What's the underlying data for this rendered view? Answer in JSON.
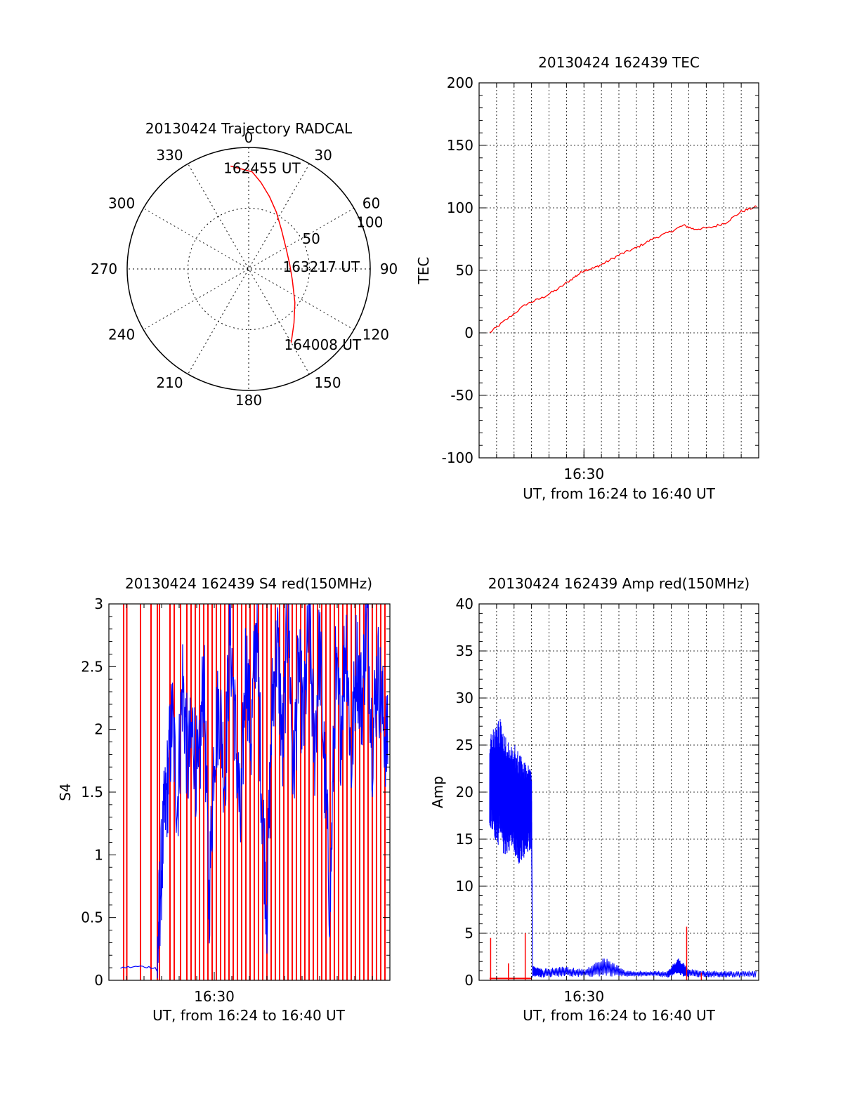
{
  "colors": {
    "red": "#ff0000",
    "blue": "#0000ff",
    "axis": "#000000",
    "grid": "#000000"
  },
  "chart_data": [
    {
      "type": "polar",
      "title": "20130424 Trajectory RADCAL",
      "angle_labels": [
        "0",
        "30",
        "60",
        "90",
        "120",
        "150",
        "180",
        "210",
        "240",
        "270",
        "300",
        "330"
      ],
      "radius_labels": [
        "50",
        "100"
      ],
      "radius_max": 100,
      "series": [
        {
          "color": "red",
          "points": [
            [
              350,
              86
            ],
            [
              2,
              80
            ],
            [
              8,
              72
            ],
            [
              16,
              62
            ],
            [
              26,
              52
            ],
            [
              40,
              42
            ],
            [
              62,
              35
            ],
            [
              84,
              34
            ],
            [
              104,
              37
            ],
            [
              126,
              47
            ],
            [
              140,
              58
            ],
            [
              150,
              70
            ]
          ]
        }
      ],
      "annotations": [
        {
          "text": "162455 UT",
          "angle": 350,
          "r": 86
        },
        {
          "text": "163217 UT",
          "angle": 84,
          "r": 34
        },
        {
          "text": "164008 UT",
          "angle": 150,
          "r": 70
        }
      ]
    },
    {
      "type": "line",
      "title": "20130424 162439 TEC",
      "ylabel": "TEC",
      "xlabel": "UT, from 16:24 to 16:40 UT",
      "xlim": [
        16.4,
        16.6667
      ],
      "ylim": [
        -100,
        200
      ],
      "yticks": [
        "-100",
        "-50",
        "0",
        "50",
        "100",
        "150",
        "200"
      ],
      "xtick_labels": [
        {
          "x": 16.5,
          "label": "16:30"
        }
      ],
      "grid": true,
      "series": [
        {
          "color": "red",
          "x": [
            16.41,
            16.425,
            16.445,
            16.46,
            16.475,
            16.49,
            16.5,
            16.51,
            16.52,
            16.535,
            16.55,
            16.565,
            16.58,
            16.595,
            16.605,
            16.62,
            16.635,
            16.65,
            16.665
          ],
          "y": [
            0,
            10,
            23,
            28,
            35,
            44,
            50,
            52,
            56,
            63,
            68,
            75,
            80,
            86,
            83,
            84,
            88,
            97,
            101
          ]
        }
      ]
    },
    {
      "type": "line",
      "title": "20130424 162439 S4 red(150MHz)",
      "ylabel": "S4",
      "xlabel": "UT, from 16:24 to 16:40 UT",
      "xlim": [
        16.4,
        16.6667
      ],
      "ylim": [
        0,
        3
      ],
      "yticks": [
        "0",
        "0.5",
        "1",
        "1.5",
        "2",
        "2.5",
        "3"
      ],
      "xtick_labels": [
        {
          "x": 16.5,
          "label": "16:30"
        }
      ],
      "grid": false,
      "series": [
        {
          "color": "red",
          "note": "vertical spikes spanning 0–3",
          "spike_x": [
            16.414,
            16.417,
            16.43,
            16.44,
            16.446,
            16.448,
            16.458,
            16.462,
            16.468,
            16.474,
            16.478,
            16.482,
            16.486,
            16.49,
            16.494,
            16.498,
            16.502,
            16.506,
            16.51,
            16.514,
            16.518,
            16.522,
            16.526,
            16.53,
            16.534,
            16.538,
            16.542,
            16.546,
            16.55,
            16.554,
            16.558,
            16.562,
            16.566,
            16.57,
            16.574,
            16.578,
            16.582,
            16.586,
            16.59,
            16.594,
            16.598,
            16.602,
            16.606,
            16.61,
            16.614,
            16.618,
            16.622,
            16.626,
            16.63,
            16.634,
            16.638,
            16.642,
            16.646,
            16.65,
            16.654,
            16.658,
            16.662
          ]
        },
        {
          "color": "blue",
          "x": [
            16.411,
            16.43,
            16.446,
            16.448,
            16.452,
            16.456,
            16.46,
            16.465,
            16.47,
            16.475,
            16.48,
            16.485,
            16.49,
            16.495,
            16.5,
            16.505,
            16.51,
            16.515,
            16.52,
            16.525,
            16.53,
            16.535,
            16.54,
            16.545,
            16.55,
            16.555,
            16.56,
            16.565,
            16.57,
            16.575,
            16.58,
            16.585,
            16.59,
            16.595,
            16.6,
            16.605,
            16.61,
            16.615,
            16.62,
            16.625,
            16.63,
            16.635,
            16.64,
            16.645,
            16.65,
            16.655,
            16.66,
            16.665
          ],
          "y": [
            0.1,
            0.11,
            0.1,
            0.6,
            1.2,
            1.6,
            2.1,
            1.4,
            2.4,
            1.7,
            2.0,
            1.5,
            2.5,
            0.6,
            1.9,
            2.2,
            1.6,
            2.8,
            2.0,
            1.2,
            2.6,
            1.9,
            2.9,
            1.5,
            0.6,
            2.2,
            2.7,
            1.8,
            3.0,
            1.6,
            2.5,
            2.0,
            2.9,
            1.8,
            2.7,
            1.6,
            0.6,
            2.4,
            2.0,
            2.8,
            1.7,
            2.6,
            2.2,
            2.9,
            1.9,
            2.5,
            2.1,
            1.8
          ]
        }
      ]
    },
    {
      "type": "line",
      "title": "20130424 162439 Amp red(150MHz)",
      "ylabel": "Amp",
      "xlabel": "UT, from 16:24 to 16:40 UT",
      "xlim": [
        16.4,
        16.6667
      ],
      "ylim": [
        0,
        40
      ],
      "yticks": [
        "0",
        "5",
        "10",
        "15",
        "20",
        "25",
        "30",
        "35",
        "40"
      ],
      "xtick_labels": [
        {
          "x": 16.5,
          "label": "16:30"
        }
      ],
      "grid": true,
      "series": [
        {
          "color": "blue",
          "x": [
            16.41,
            16.415,
            16.42,
            16.425,
            16.43,
            16.435,
            16.44,
            16.445,
            16.45,
            16.451,
            16.455,
            16.46,
            16.48,
            16.5,
            16.52,
            16.54,
            16.56,
            16.58,
            16.59,
            16.6,
            16.62,
            16.64,
            16.665
          ],
          "y_high": [
            26,
            27,
            28,
            26,
            25,
            25,
            24,
            23,
            23,
            1.5,
            1.4,
            1.2,
            1.5,
            1.2,
            2.5,
            1.0,
            1.0,
            1.0,
            2.5,
            1.2,
            1.0,
            1.0,
            1.0
          ],
          "y_low": [
            16,
            15,
            14,
            13,
            14,
            13,
            12,
            13,
            14,
            0.3,
            0.4,
            0.3,
            0.4,
            0.3,
            0.4,
            0.3,
            0.4,
            0.3,
            0.5,
            0.3,
            0.3,
            0.3,
            0.3
          ]
        },
        {
          "color": "red",
          "spikes": [
            [
              16.411,
              4.5
            ],
            [
              16.428,
              1.8
            ],
            [
              16.444,
              5.0
            ],
            [
              16.598,
              5.7
            ],
            [
              16.612,
              0.8
            ]
          ],
          "baseline": 0.2,
          "baseline_x": [
            16.41,
            16.45
          ]
        }
      ]
    }
  ]
}
